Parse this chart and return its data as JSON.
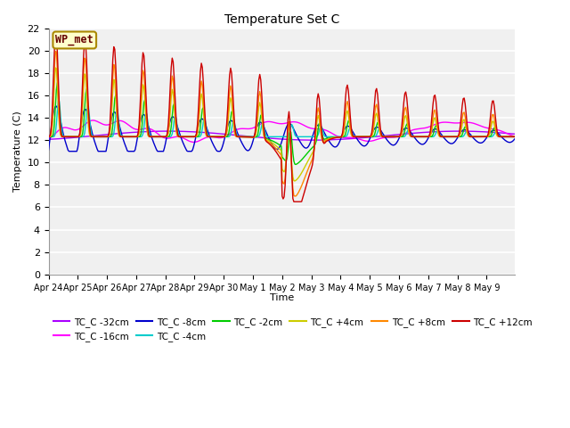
{
  "title": "Temperature Set C",
  "xlabel": "Time",
  "ylabel": "Temperature (C)",
  "ylim": [
    0,
    22
  ],
  "yticks": [
    0,
    2,
    4,
    6,
    8,
    10,
    12,
    14,
    16,
    18,
    20,
    22
  ],
  "x_labels": [
    "Apr 24",
    "Apr 25",
    "Apr 26",
    "Apr 27",
    "Apr 28",
    "Apr 29",
    "Apr 30",
    "May 1",
    "May 2",
    "May 3",
    "May 4",
    "May 5",
    "May 6",
    "May 7",
    "May 8",
    "May 9"
  ],
  "legend_entries": [
    {
      "label": "TC_C -32cm",
      "color": "#AA00FF"
    },
    {
      "label": "TC_C -16cm",
      "color": "#FF00FF"
    },
    {
      "label": "TC_C -8cm",
      "color": "#0000CC"
    },
    {
      "label": "TC_C -4cm",
      "color": "#00CCCC"
    },
    {
      "label": "TC_C -2cm",
      "color": "#00CC00"
    },
    {
      "label": "TC_C +4cm",
      "color": "#CCCC00"
    },
    {
      "label": "TC_C +8cm",
      "color": "#FF8800"
    },
    {
      "label": "TC_C +12cm",
      "color": "#CC0000"
    }
  ],
  "wp_met_label": "WP_met",
  "wp_met_text_color": "#660000",
  "wp_met_edge_color": "#AA8800",
  "wp_met_bg": "#FFFFCC",
  "fig_bg": "#FFFFFF",
  "plot_bg": "#F0F0F0",
  "grid_color": "#FFFFFF",
  "n_points": 480
}
